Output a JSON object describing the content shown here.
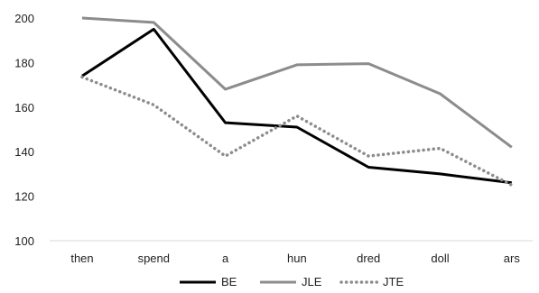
{
  "chart_data": {
    "type": "line",
    "categories": [
      "then",
      "spend",
      "a",
      "hun",
      "dred",
      "doll",
      "ars"
    ],
    "ylim": [
      100,
      200
    ],
    "yticks": [
      100,
      120,
      140,
      160,
      180,
      200
    ],
    "grid": false,
    "legend_position": "bottom",
    "series": [
      {
        "name": "BE",
        "values": [
          174,
          195,
          153,
          151,
          133,
          130,
          126
        ],
        "color": "#000000",
        "style": "solid"
      },
      {
        "name": "JLE",
        "values": [
          200,
          198,
          168,
          179,
          179.5,
          166,
          142
        ],
        "color": "#8c8c8c",
        "style": "solid"
      },
      {
        "name": "JTE",
        "values": [
          173.5,
          161,
          138,
          156,
          138,
          141.5,
          125
        ],
        "color": "#8c8c8c",
        "style": "dotted"
      }
    ]
  }
}
